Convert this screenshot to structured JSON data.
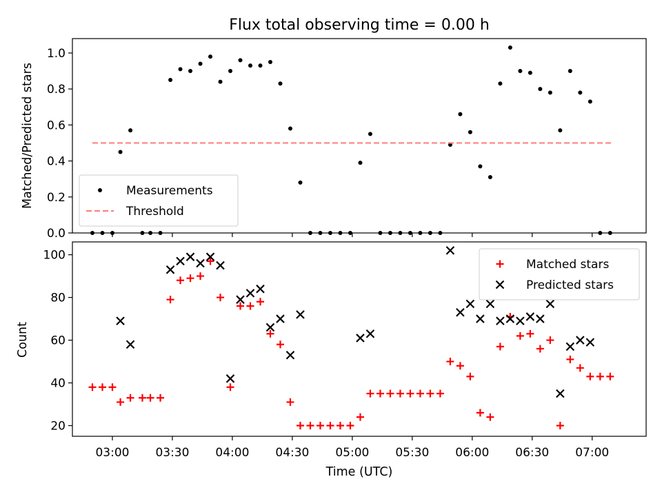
{
  "chart_data": [
    {
      "type": "scatter",
      "title": "Flux total observing time = 0.00 h",
      "xlabel": "",
      "ylabel": "Matched/Predicted stars",
      "ylim": [
        0,
        1.08
      ],
      "yticks": [
        "0.0",
        "0.2",
        "0.4",
        "0.6",
        "0.8",
        "1.0"
      ],
      "xticks": [
        "03:00",
        "03:30",
        "04:00",
        "04:30",
        "05:00",
        "05:30",
        "06:00",
        "06:30",
        "07:00"
      ],
      "xlim": [
        "02:40",
        "07:27"
      ],
      "legend_position": "lower-left",
      "series": [
        {
          "name": "Measurements",
          "marker": "dot",
          "color": "#000000",
          "points": [
            [
              "02:50",
              0.0
            ],
            [
              "02:55",
              0.0
            ],
            [
              "03:00",
              0.0
            ],
            [
              "03:04",
              0.45
            ],
            [
              "03:09",
              0.57
            ],
            [
              "03:15",
              0.0
            ],
            [
              "03:19",
              0.0
            ],
            [
              "03:24",
              0.0
            ],
            [
              "03:29",
              0.85
            ],
            [
              "03:34",
              0.91
            ],
            [
              "03:39",
              0.9
            ],
            [
              "03:44",
              0.94
            ],
            [
              "03:49",
              0.98
            ],
            [
              "03:54",
              0.84
            ],
            [
              "03:59",
              0.9
            ],
            [
              "04:04",
              0.96
            ],
            [
              "04:09",
              0.93
            ],
            [
              "04:14",
              0.93
            ],
            [
              "04:19",
              0.95
            ],
            [
              "04:24",
              0.83
            ],
            [
              "04:29",
              0.58
            ],
            [
              "04:34",
              0.28
            ],
            [
              "04:39",
              0.0
            ],
            [
              "04:44",
              0.0
            ],
            [
              "04:49",
              0.0
            ],
            [
              "04:54",
              0.0
            ],
            [
              "04:59",
              0.0
            ],
            [
              "05:04",
              0.39
            ],
            [
              "05:09",
              0.55
            ],
            [
              "05:14",
              0.0
            ],
            [
              "05:19",
              0.0
            ],
            [
              "05:24",
              0.0
            ],
            [
              "05:29",
              0.0
            ],
            [
              "05:34",
              0.0
            ],
            [
              "05:39",
              0.0
            ],
            [
              "05:44",
              0.0
            ],
            [
              "05:49",
              0.49
            ],
            [
              "05:54",
              0.66
            ],
            [
              "05:59",
              0.56
            ],
            [
              "06:04",
              0.37
            ],
            [
              "06:09",
              0.31
            ],
            [
              "06:14",
              0.83
            ],
            [
              "06:19",
              1.03
            ],
            [
              "06:24",
              0.9
            ],
            [
              "06:29",
              0.89
            ],
            [
              "06:34",
              0.8
            ],
            [
              "06:39",
              0.78
            ],
            [
              "06:44",
              0.57
            ],
            [
              "06:49",
              0.9
            ],
            [
              "06:54",
              0.78
            ],
            [
              "06:59",
              0.73
            ],
            [
              "07:04",
              0.0
            ],
            [
              "07:09",
              0.0
            ]
          ]
        },
        {
          "name": "Threshold",
          "marker": "dashed-line",
          "color": "#ff8080",
          "points": [
            [
              "02:50",
              0.5
            ],
            [
              "07:10",
              0.5
            ]
          ]
        }
      ]
    },
    {
      "type": "scatter",
      "title": "",
      "xlabel": "Time (UTC)",
      "ylabel": "Count",
      "ylim": [
        15,
        106
      ],
      "yticks": [
        "20",
        "40",
        "60",
        "80",
        "100"
      ],
      "xticks": [
        "03:00",
        "03:30",
        "04:00",
        "04:30",
        "05:00",
        "05:30",
        "06:00",
        "06:30",
        "07:00"
      ],
      "xlim": [
        "02:40",
        "07:27"
      ],
      "legend_position": "upper-right",
      "series": [
        {
          "name": "Matched stars",
          "marker": "plus",
          "color": "#ff0000",
          "points": [
            [
              "02:50",
              38
            ],
            [
              "02:55",
              38
            ],
            [
              "03:00",
              38
            ],
            [
              "03:04",
              31
            ],
            [
              "03:09",
              33
            ],
            [
              "03:15",
              33
            ],
            [
              "03:19",
              33
            ],
            [
              "03:24",
              33
            ],
            [
              "03:29",
              79
            ],
            [
              "03:34",
              88
            ],
            [
              "03:39",
              89
            ],
            [
              "03:44",
              90
            ],
            [
              "03:49",
              97
            ],
            [
              "03:54",
              80
            ],
            [
              "03:59",
              38
            ],
            [
              "04:04",
              76
            ],
            [
              "04:09",
              76
            ],
            [
              "04:14",
              78
            ],
            [
              "04:19",
              63
            ],
            [
              "04:24",
              58
            ],
            [
              "04:29",
              31
            ],
            [
              "04:34",
              20
            ],
            [
              "04:39",
              20
            ],
            [
              "04:44",
              20
            ],
            [
              "04:49",
              20
            ],
            [
              "04:54",
              20
            ],
            [
              "04:59",
              20
            ],
            [
              "05:04",
              24
            ],
            [
              "05:09",
              35
            ],
            [
              "05:14",
              35
            ],
            [
              "05:19",
              35
            ],
            [
              "05:24",
              35
            ],
            [
              "05:29",
              35
            ],
            [
              "05:34",
              35
            ],
            [
              "05:39",
              35
            ],
            [
              "05:44",
              35
            ],
            [
              "05:49",
              50
            ],
            [
              "05:54",
              48
            ],
            [
              "05:59",
              43
            ],
            [
              "06:04",
              26
            ],
            [
              "06:09",
              24
            ],
            [
              "06:14",
              57
            ],
            [
              "06:19",
              71
            ],
            [
              "06:24",
              62
            ],
            [
              "06:29",
              63
            ],
            [
              "06:34",
              56
            ],
            [
              "06:39",
              60
            ],
            [
              "06:44",
              20
            ],
            [
              "06:49",
              51
            ],
            [
              "06:54",
              47
            ],
            [
              "06:59",
              43
            ],
            [
              "07:04",
              43
            ],
            [
              "07:09",
              43
            ]
          ]
        },
        {
          "name": "Predicted stars",
          "marker": "x",
          "color": "#000000",
          "points": [
            [
              "03:04",
              69
            ],
            [
              "03:09",
              58
            ],
            [
              "03:29",
              93
            ],
            [
              "03:34",
              97
            ],
            [
              "03:39",
              99
            ],
            [
              "03:44",
              96
            ],
            [
              "03:49",
              99
            ],
            [
              "03:54",
              95
            ],
            [
              "03:59",
              42
            ],
            [
              "04:04",
              79
            ],
            [
              "04:09",
              82
            ],
            [
              "04:14",
              84
            ],
            [
              "04:19",
              66
            ],
            [
              "04:24",
              70
            ],
            [
              "04:29",
              53
            ],
            [
              "04:34",
              72
            ],
            [
              "05:04",
              61
            ],
            [
              "05:09",
              63
            ],
            [
              "05:49",
              102
            ],
            [
              "05:54",
              73
            ],
            [
              "05:59",
              77
            ],
            [
              "06:04",
              70
            ],
            [
              "06:09",
              77
            ],
            [
              "06:14",
              69
            ],
            [
              "06:19",
              70
            ],
            [
              "06:24",
              69
            ],
            [
              "06:29",
              71
            ],
            [
              "06:34",
              70
            ],
            [
              "06:39",
              77
            ],
            [
              "06:44",
              35
            ],
            [
              "06:49",
              57
            ],
            [
              "06:54",
              60
            ],
            [
              "06:59",
              59
            ]
          ]
        }
      ]
    }
  ]
}
